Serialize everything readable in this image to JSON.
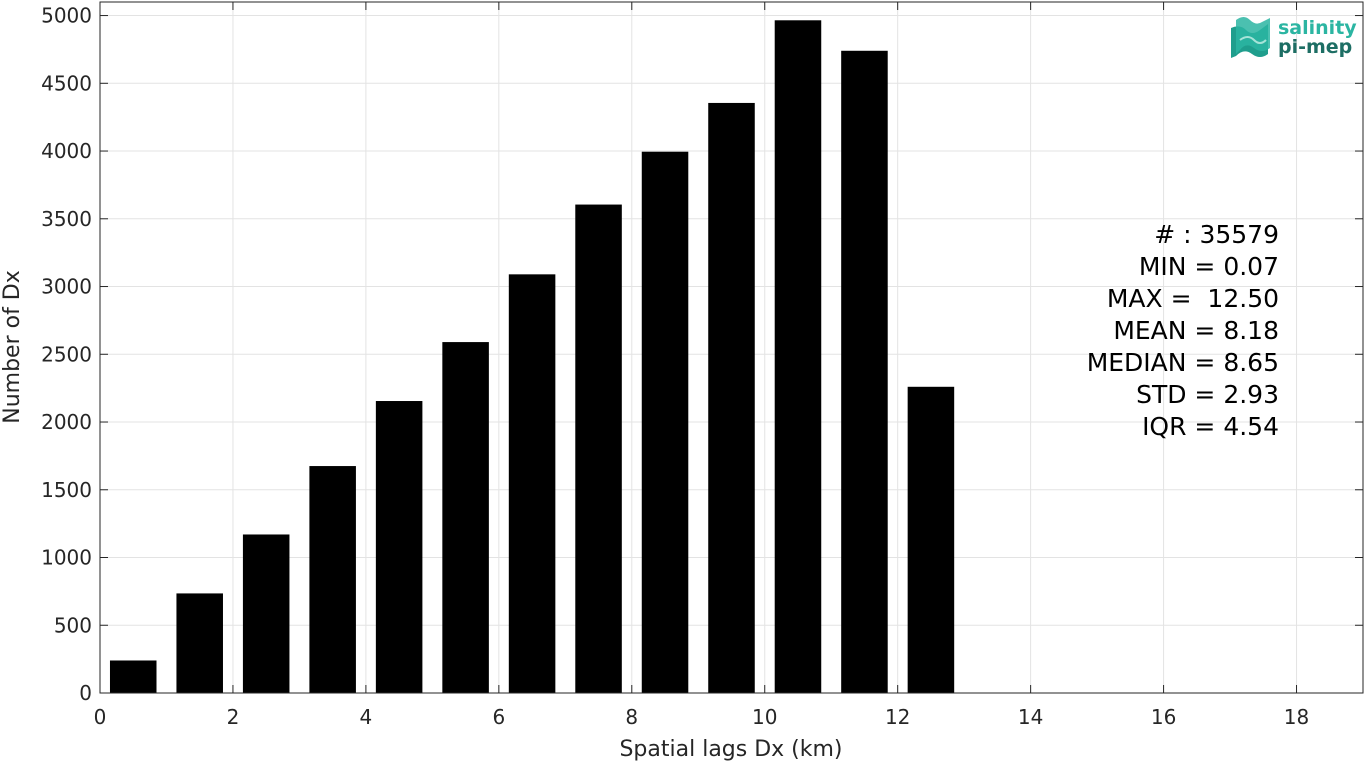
{
  "chart_data": {
    "type": "bar",
    "xlabel": "Spatial lags Dx (km)",
    "ylabel": "Number of Dx",
    "xlim": [
      0,
      19
    ],
    "ylim": [
      0,
      5100
    ],
    "xticks": [
      0,
      2,
      4,
      6,
      8,
      10,
      12,
      14,
      16,
      18
    ],
    "yticks": [
      0,
      500,
      1000,
      1500,
      2000,
      2500,
      3000,
      3500,
      4000,
      4500,
      5000
    ],
    "grid": true,
    "bar_width": 0.7,
    "bar_color": "#000000",
    "x": [
      0.5,
      1.5,
      2.5,
      3.5,
      4.5,
      5.5,
      6.5,
      7.5,
      8.5,
      9.5,
      10.5,
      11.5,
      12.5
    ],
    "values": [
      240,
      735,
      1170,
      1675,
      2155,
      2590,
      3090,
      3605,
      3995,
      4355,
      4965,
      4740,
      2260
    ],
    "stats_lines": [
      "# : 35579",
      "MIN = 0.07",
      "MAX =  12.50",
      "MEAN = 8.18",
      "MEDIAN = 8.65",
      "STD = 2.93",
      "IQR = 4.54"
    ]
  },
  "logo": {
    "line1": "salinity",
    "line2": "pi-mep",
    "color1": "#2bb5a2",
    "color2": "#1d6e64"
  }
}
